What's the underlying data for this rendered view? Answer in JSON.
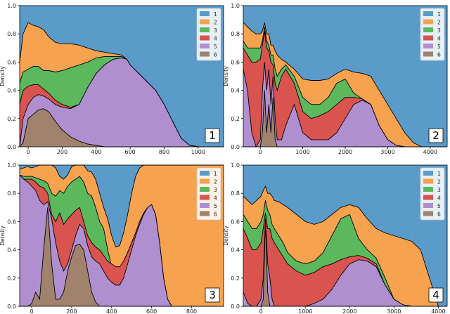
{
  "colors": {
    "1": "#5b9bc9",
    "2": "#f7a24f",
    "3": "#5cb85c",
    "4": "#d9534f",
    "5": "#b08fd0",
    "6": "#a0826d"
  },
  "chart_data": [
    {
      "type": "area",
      "panel_label": "1",
      "ylabel": "Density",
      "xlim": [
        -50,
        1150
      ],
      "ylim": [
        0,
        1
      ],
      "xticks": [
        0,
        200,
        400,
        600,
        800,
        1000
      ],
      "yticks": [
        0.0,
        0.2,
        0.4,
        0.6,
        0.8,
        1.0
      ],
      "legend": [
        "1",
        "2",
        "3",
        "4",
        "5",
        "6"
      ],
      "legend_position": "top-right",
      "x": [
        -50,
        -30,
        0,
        30,
        60,
        90,
        120,
        160,
        200,
        250,
        300,
        350,
        400,
        450,
        500,
        550,
        580,
        600,
        650,
        700,
        750,
        800,
        850,
        900,
        950,
        1000,
        1150
      ],
      "cumulative": {
        "6": [
          0.0,
          0.03,
          0.2,
          0.23,
          0.26,
          0.27,
          0.25,
          0.18,
          0.12,
          0.07,
          0.04,
          0.02,
          0.01,
          0.0,
          0.0,
          0.0,
          0.0,
          0.0,
          0.0,
          0.0,
          0.0,
          0.0,
          0.0,
          0.0,
          0.0,
          0.0,
          0.0
        ],
        "5": [
          0.0,
          0.2,
          0.3,
          0.35,
          0.37,
          0.36,
          0.34,
          0.3,
          0.28,
          0.27,
          0.3,
          0.42,
          0.52,
          0.58,
          0.62,
          0.63,
          0.62,
          0.58,
          0.52,
          0.46,
          0.4,
          0.3,
          0.18,
          0.06,
          0.01,
          0.0,
          0.0
        ],
        "4": [
          0.3,
          0.4,
          0.43,
          0.44,
          0.44,
          0.41,
          0.38,
          0.33,
          0.3,
          0.28,
          0.3,
          0.42,
          0.52,
          0.58,
          0.62,
          0.63,
          0.62,
          0.58,
          0.52,
          0.46,
          0.4,
          0.3,
          0.18,
          0.06,
          0.01,
          0.0,
          0.0
        ],
        "3": [
          0.45,
          0.53,
          0.55,
          0.57,
          0.57,
          0.54,
          0.54,
          0.53,
          0.54,
          0.56,
          0.58,
          0.6,
          0.63,
          0.64,
          0.64,
          0.64,
          0.62,
          0.58,
          0.52,
          0.46,
          0.4,
          0.3,
          0.18,
          0.06,
          0.01,
          0.0,
          0.0
        ],
        "2": [
          0.6,
          0.8,
          0.88,
          0.86,
          0.85,
          0.83,
          0.78,
          0.74,
          0.73,
          0.73,
          0.72,
          0.7,
          0.68,
          0.67,
          0.66,
          0.65,
          0.62,
          0.58,
          0.52,
          0.46,
          0.4,
          0.3,
          0.18,
          0.06,
          0.01,
          0.0,
          0.0
        ]
      }
    },
    {
      "type": "area",
      "panel_label": "2",
      "ylabel": "Density",
      "xlim": [
        -400,
        4400
      ],
      "ylim": [
        0,
        1
      ],
      "xticks": [
        0,
        1000,
        2000,
        3000,
        4000
      ],
      "yticks": [
        0.0,
        0.2,
        0.4,
        0.6,
        0.8,
        1.0
      ],
      "legend": [
        "1",
        "2",
        "3",
        "4",
        "5",
        "6"
      ],
      "legend_position": "top-right",
      "x": [
        -400,
        -300,
        -200,
        -100,
        0,
        50,
        100,
        150,
        200,
        250,
        300,
        350,
        400,
        500,
        600,
        800,
        1000,
        1200,
        1400,
        1600,
        1800,
        2000,
        2200,
        2400,
        2600,
        2800,
        3000,
        3200,
        3400,
        3600,
        3800,
        4000,
        4400
      ],
      "cumulative": {
        "6": [
          0.0,
          0.0,
          0.0,
          0.0,
          0.0,
          0.1,
          0.4,
          0.1,
          0.3,
          0.1,
          0.35,
          0.05,
          0.0,
          0.0,
          0.0,
          0.0,
          0.0,
          0.0,
          0.0,
          0.0,
          0.0,
          0.0,
          0.0,
          0.0,
          0.0,
          0.0,
          0.0,
          0.0,
          0.0,
          0.0,
          0.0,
          0.0,
          0.0
        ],
        "5": [
          0.55,
          0.4,
          0.1,
          0.0,
          0.05,
          0.4,
          0.6,
          0.4,
          0.55,
          0.3,
          0.5,
          0.2,
          0.05,
          0.05,
          0.15,
          0.3,
          0.1,
          0.05,
          0.05,
          0.05,
          0.1,
          0.2,
          0.3,
          0.33,
          0.3,
          0.15,
          0.05,
          0.01,
          0.0,
          0.0,
          0.0,
          0.0,
          0.0
        ],
        "4": [
          0.7,
          0.65,
          0.6,
          0.6,
          0.62,
          0.72,
          0.82,
          0.7,
          0.68,
          0.6,
          0.58,
          0.45,
          0.4,
          0.5,
          0.55,
          0.45,
          0.25,
          0.2,
          0.22,
          0.25,
          0.3,
          0.35,
          0.35,
          0.34,
          0.3,
          0.15,
          0.05,
          0.01,
          0.0,
          0.0,
          0.0,
          0.0,
          0.0
        ],
        "3": [
          0.75,
          0.7,
          0.7,
          0.7,
          0.7,
          0.75,
          0.85,
          0.75,
          0.72,
          0.65,
          0.65,
          0.55,
          0.5,
          0.55,
          0.58,
          0.5,
          0.35,
          0.3,
          0.3,
          0.35,
          0.45,
          0.48,
          0.38,
          0.34,
          0.3,
          0.15,
          0.05,
          0.01,
          0.0,
          0.0,
          0.0,
          0.0,
          0.0
        ],
        "2": [
          0.88,
          0.85,
          0.82,
          0.8,
          0.8,
          0.82,
          0.88,
          0.8,
          0.8,
          0.72,
          0.72,
          0.68,
          0.65,
          0.62,
          0.6,
          0.55,
          0.48,
          0.47,
          0.47,
          0.48,
          0.52,
          0.55,
          0.53,
          0.52,
          0.5,
          0.4,
          0.3,
          0.2,
          0.1,
          0.03,
          0.0,
          0.0,
          0.0
        ]
      }
    },
    {
      "type": "area",
      "panel_label": "3",
      "ylabel": "Density",
      "xlim": [
        -60,
        960
      ],
      "ylim": [
        0,
        1
      ],
      "xticks": [
        0,
        200,
        400,
        600,
        800
      ],
      "yticks": [
        0.0,
        0.2,
        0.4,
        0.6,
        0.8,
        1.0
      ],
      "legend": [
        "1",
        "2",
        "3",
        "4",
        "5",
        "6"
      ],
      "legend_position": "top-right",
      "x": [
        -60,
        -40,
        -20,
        0,
        20,
        40,
        60,
        80,
        100,
        120,
        140,
        160,
        180,
        200,
        220,
        240,
        260,
        280,
        300,
        320,
        340,
        360,
        380,
        400,
        420,
        440,
        460,
        480,
        500,
        520,
        540,
        560,
        580,
        600,
        620,
        640,
        660,
        680,
        700,
        960
      ],
      "cumulative": {
        "6": [
          0.0,
          0.0,
          0.0,
          0.02,
          0.1,
          0.05,
          0.4,
          0.7,
          0.3,
          0.05,
          0.05,
          0.1,
          0.25,
          0.35,
          0.43,
          0.44,
          0.4,
          0.25,
          0.1,
          0.03,
          0.0,
          0.0,
          0.0,
          0.0,
          0.0,
          0.0,
          0.0,
          0.0,
          0.0,
          0.0,
          0.0,
          0.0,
          0.0,
          0.0,
          0.0,
          0.0,
          0.0,
          0.0,
          0.0,
          0.0
        ],
        "5": [
          0.93,
          0.9,
          0.88,
          0.85,
          0.82,
          0.75,
          0.72,
          0.74,
          0.62,
          0.45,
          0.32,
          0.25,
          0.3,
          0.4,
          0.5,
          0.58,
          0.55,
          0.43,
          0.35,
          0.32,
          0.3,
          0.25,
          0.2,
          0.17,
          0.15,
          0.15,
          0.2,
          0.3,
          0.4,
          0.5,
          0.58,
          0.65,
          0.7,
          0.72,
          0.65,
          0.45,
          0.2,
          0.05,
          0.0,
          0.0
        ],
        "4": [
          0.93,
          0.9,
          0.9,
          0.9,
          0.88,
          0.85,
          0.84,
          0.8,
          0.65,
          0.6,
          0.66,
          0.58,
          0.62,
          0.65,
          0.68,
          0.7,
          0.6,
          0.5,
          0.45,
          0.42,
          0.4,
          0.36,
          0.32,
          0.3,
          0.28,
          0.28,
          0.32,
          0.38,
          0.45,
          0.52,
          0.6,
          0.66,
          0.7,
          0.72,
          0.65,
          0.45,
          0.2,
          0.05,
          0.0,
          0.0
        ],
        "3": [
          0.93,
          0.92,
          0.92,
          0.92,
          0.91,
          0.9,
          0.89,
          0.87,
          0.8,
          0.78,
          0.82,
          0.8,
          0.85,
          0.88,
          0.9,
          0.92,
          0.88,
          0.8,
          0.78,
          0.7,
          0.6,
          0.55,
          0.4,
          0.28,
          0.25,
          0.27,
          0.32,
          0.38,
          0.45,
          0.52,
          0.6,
          0.66,
          0.7,
          0.72,
          0.65,
          0.45,
          0.2,
          0.05,
          0.0,
          0.0
        ],
        "2": [
          0.97,
          0.98,
          0.99,
          0.98,
          0.99,
          1.0,
          1.0,
          1.0,
          1.0,
          0.98,
          0.92,
          0.9,
          0.93,
          0.99,
          1.0,
          1.0,
          1.0,
          0.96,
          0.95,
          0.9,
          0.8,
          0.7,
          0.62,
          0.5,
          0.42,
          0.43,
          0.52,
          0.65,
          0.8,
          0.92,
          0.98,
          1.0,
          1.0,
          1.0,
          1.0,
          1.0,
          1.0,
          1.0,
          1.0,
          1.0
        ]
      }
    },
    {
      "type": "area",
      "panel_label": "4",
      "ylabel": "Density",
      "xlim": [
        -400,
        4200
      ],
      "ylim": [
        0,
        1
      ],
      "xticks": [
        0,
        1000,
        2000,
        3000,
        4000
      ],
      "yticks": [
        0.0,
        0.2,
        0.4,
        0.6,
        0.8,
        1.0
      ],
      "legend": [
        "1",
        "2",
        "3",
        "4",
        "5",
        "6"
      ],
      "legend_position": "top-right",
      "x": [
        -400,
        -300,
        -200,
        -100,
        0,
        50,
        100,
        150,
        200,
        250,
        300,
        400,
        500,
        600,
        800,
        1000,
        1200,
        1400,
        1600,
        1800,
        2000,
        2200,
        2400,
        2600,
        2800,
        3000,
        3200,
        3400,
        3600,
        3800,
        4000,
        4200
      ],
      "cumulative": {
        "6": [
          0.0,
          0.0,
          0.0,
          0.0,
          0.0,
          0.05,
          0.6,
          0.1,
          0.0,
          0.0,
          0.0,
          0.0,
          0.0,
          0.0,
          0.0,
          0.0,
          0.0,
          0.0,
          0.0,
          0.0,
          0.0,
          0.0,
          0.0,
          0.0,
          0.0,
          0.0,
          0.0,
          0.0,
          0.0,
          0.0,
          0.0,
          0.0
        ],
        "5": [
          0.1,
          0.02,
          0.0,
          0.0,
          0.05,
          0.2,
          0.62,
          0.3,
          0.2,
          0.05,
          0.0,
          0.0,
          0.0,
          0.0,
          0.0,
          0.0,
          0.02,
          0.05,
          0.12,
          0.22,
          0.3,
          0.33,
          0.32,
          0.28,
          0.15,
          0.05,
          0.01,
          0.0,
          0.0,
          0.0,
          0.0,
          0.0
        ],
        "4": [
          0.55,
          0.48,
          0.4,
          0.4,
          0.45,
          0.55,
          0.66,
          0.55,
          0.55,
          0.48,
          0.45,
          0.4,
          0.35,
          0.3,
          0.25,
          0.22,
          0.24,
          0.28,
          0.3,
          0.33,
          0.35,
          0.36,
          0.34,
          0.3,
          0.15,
          0.05,
          0.01,
          0.0,
          0.0,
          0.0,
          0.0,
          0.0
        ],
        "3": [
          0.65,
          0.6,
          0.55,
          0.55,
          0.6,
          0.65,
          0.75,
          0.68,
          0.65,
          0.58,
          0.55,
          0.5,
          0.45,
          0.38,
          0.32,
          0.3,
          0.32,
          0.38,
          0.5,
          0.62,
          0.65,
          0.48,
          0.4,
          0.34,
          0.2,
          0.05,
          0.01,
          0.0,
          0.0,
          0.0,
          0.0,
          0.0
        ],
        "2": [
          0.78,
          0.75,
          0.72,
          0.75,
          0.78,
          0.82,
          0.85,
          0.8,
          0.8,
          0.78,
          0.75,
          0.74,
          0.72,
          0.7,
          0.65,
          0.6,
          0.58,
          0.6,
          0.65,
          0.7,
          0.72,
          0.7,
          0.62,
          0.55,
          0.52,
          0.5,
          0.48,
          0.46,
          0.4,
          0.2,
          0.0,
          0.0
        ]
      }
    }
  ]
}
